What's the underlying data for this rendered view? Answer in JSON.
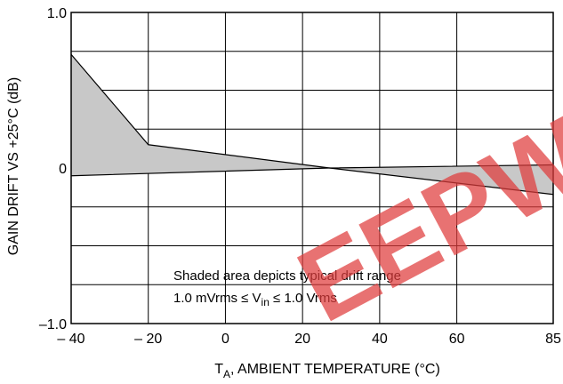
{
  "chart_data": {
    "type": "area",
    "title": "",
    "xlabel": {
      "main": "T",
      "sub": "A",
      "rest": ", AMBIENT TEMPERATURE (°C)"
    },
    "ylabel": "GAIN DRIFT VS +25°C (dB)",
    "xlim": [
      -40,
      85
    ],
    "ylim": [
      -1.0,
      1.0
    ],
    "x_ticks": [
      {
        "value": -40,
        "label": "– 40"
      },
      {
        "value": -20,
        "label": "– 20"
      },
      {
        "value": 0,
        "label": "0"
      },
      {
        "value": 20,
        "label": "20"
      },
      {
        "value": 40,
        "label": "40"
      },
      {
        "value": 60,
        "label": "60"
      },
      {
        "value": 85,
        "label": "85"
      }
    ],
    "y_ticks": [
      {
        "value": 1.0,
        "label": "1.0"
      },
      {
        "value": 0,
        "label": "0"
      },
      {
        "value": -1.0,
        "label": "–1.0"
      }
    ],
    "grid": true,
    "series": [
      {
        "x": [
          -40,
          -20,
          27,
          85
        ],
        "y": [
          0.73,
          0.15,
          0.0,
          -0.17
        ]
      },
      {
        "x": [
          -40,
          27,
          85
        ],
        "y": [
          -0.05,
          0.0,
          0.02
        ]
      }
    ],
    "annotation": {
      "line1": "Shaded area depicts typical drift range",
      "line2_prefix": "1.0 mVrms ≤ V",
      "line2_sub": "in",
      "line2_suffix": " ≤ 1.0 Vrms"
    },
    "watermark_text": "EEPW",
    "colors": {
      "fill": "#c8c8c8",
      "line": "#000000",
      "grid": "#000000",
      "watermark": "#e03c3c"
    }
  }
}
